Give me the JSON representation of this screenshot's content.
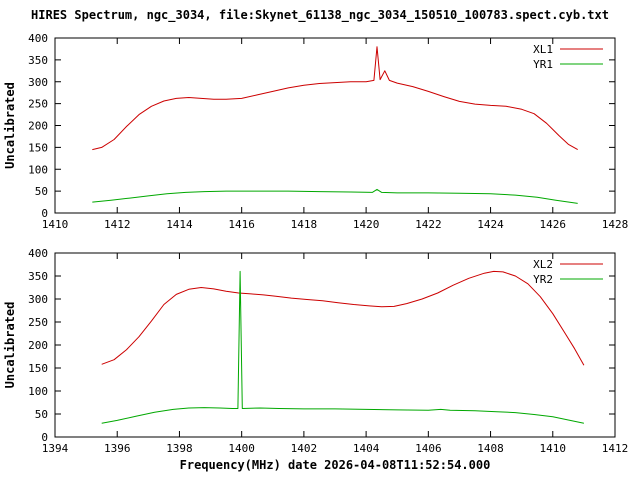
{
  "title": "HIRES Spectrum, ngc_3034, file:Skynet_61138_ngc_3034_150510_100783.spect.cyb.txt",
  "colors": {
    "series_red": "#cc0000",
    "series_green": "#00a800",
    "axis": "#000000",
    "background": "#ffffff"
  },
  "chart_data": [
    {
      "type": "line",
      "title": "",
      "xlabel": "",
      "ylabel": "Uncalibrated",
      "xlim": [
        1410,
        1428
      ],
      "ylim": [
        0,
        400
      ],
      "xtick_step": 2,
      "ytick_step": 50,
      "grid": false,
      "legend_position": "top-right",
      "series": [
        {
          "name": "XL1",
          "color": "#cc0000",
          "points": [
            [
              1411.2,
              145
            ],
            [
              1411.5,
              150
            ],
            [
              1411.9,
              168
            ],
            [
              1412.3,
              198
            ],
            [
              1412.7,
              225
            ],
            [
              1413.1,
              244
            ],
            [
              1413.5,
              256
            ],
            [
              1413.9,
              262
            ],
            [
              1414.3,
              264
            ],
            [
              1414.7,
              262
            ],
            [
              1415.1,
              260
            ],
            [
              1415.5,
              260
            ],
            [
              1416.0,
              262
            ],
            [
              1416.5,
              270
            ],
            [
              1417.0,
              278
            ],
            [
              1417.5,
              286
            ],
            [
              1418.0,
              292
            ],
            [
              1418.5,
              296
            ],
            [
              1419.0,
              298
            ],
            [
              1419.5,
              300
            ],
            [
              1420.0,
              300
            ],
            [
              1420.25,
              303
            ],
            [
              1420.35,
              380
            ],
            [
              1420.45,
              305
            ],
            [
              1420.6,
              325
            ],
            [
              1420.75,
              303
            ],
            [
              1421.0,
              297
            ],
            [
              1421.5,
              289
            ],
            [
              1422.0,
              278
            ],
            [
              1422.5,
              266
            ],
            [
              1423.0,
              255
            ],
            [
              1423.5,
              249
            ],
            [
              1424.0,
              246
            ],
            [
              1424.5,
              244
            ],
            [
              1425.0,
              237
            ],
            [
              1425.4,
              227
            ],
            [
              1425.8,
              205
            ],
            [
              1426.2,
              177
            ],
            [
              1426.5,
              157
            ],
            [
              1426.8,
              145
            ]
          ]
        },
        {
          "name": "YR1",
          "color": "#00a800",
          "points": [
            [
              1411.2,
              25
            ],
            [
              1411.8,
              29
            ],
            [
              1412.4,
              34
            ],
            [
              1413.0,
              39
            ],
            [
              1413.6,
              44
            ],
            [
              1414.2,
              47
            ],
            [
              1414.8,
              49
            ],
            [
              1415.5,
              50
            ],
            [
              1416.5,
              50
            ],
            [
              1417.5,
              50
            ],
            [
              1418.5,
              49
            ],
            [
              1419.5,
              48
            ],
            [
              1420.2,
              47
            ],
            [
              1420.35,
              54
            ],
            [
              1420.5,
              47
            ],
            [
              1421.0,
              46
            ],
            [
              1422.0,
              46
            ],
            [
              1423.0,
              45
            ],
            [
              1424.0,
              44
            ],
            [
              1424.8,
              41
            ],
            [
              1425.5,
              36
            ],
            [
              1426.1,
              29
            ],
            [
              1426.8,
              22
            ]
          ]
        }
      ]
    },
    {
      "type": "line",
      "title": "",
      "xlabel": "Frequency(MHz) date 2026-04-08T11:52:54.000",
      "ylabel": "Uncalibrated",
      "xlim": [
        1394,
        1412
      ],
      "ylim": [
        0,
        400
      ],
      "xtick_step": 2,
      "ytick_step": 50,
      "grid": false,
      "legend_position": "top-right",
      "series": [
        {
          "name": "XL2",
          "color": "#cc0000",
          "points": [
            [
              1395.5,
              158
            ],
            [
              1395.9,
              168
            ],
            [
              1396.3,
              190
            ],
            [
              1396.7,
              218
            ],
            [
              1397.1,
              252
            ],
            [
              1397.5,
              288
            ],
            [
              1397.9,
              310
            ],
            [
              1398.3,
              321
            ],
            [
              1398.7,
              325
            ],
            [
              1399.1,
              322
            ],
            [
              1399.5,
              317
            ],
            [
              1399.9,
              313
            ],
            [
              1400.3,
              311
            ],
            [
              1400.7,
              309
            ],
            [
              1401.1,
              306
            ],
            [
              1401.6,
              302
            ],
            [
              1402.1,
              299
            ],
            [
              1402.6,
              296
            ],
            [
              1403.1,
              292
            ],
            [
              1403.6,
              288
            ],
            [
              1404.1,
              285
            ],
            [
              1404.5,
              283
            ],
            [
              1404.9,
              284
            ],
            [
              1405.3,
              290
            ],
            [
              1405.8,
              300
            ],
            [
              1406.3,
              313
            ],
            [
              1406.8,
              330
            ],
            [
              1407.3,
              345
            ],
            [
              1407.8,
              356
            ],
            [
              1408.1,
              360
            ],
            [
              1408.4,
              359
            ],
            [
              1408.8,
              350
            ],
            [
              1409.2,
              333
            ],
            [
              1409.6,
              305
            ],
            [
              1410.0,
              268
            ],
            [
              1410.4,
              225
            ],
            [
              1410.7,
              192
            ],
            [
              1411.0,
              156
            ]
          ]
        },
        {
          "name": "YR2",
          "color": "#00a800",
          "points": [
            [
              1395.5,
              30
            ],
            [
              1396.0,
              36
            ],
            [
              1396.6,
              45
            ],
            [
              1397.2,
              54
            ],
            [
              1397.8,
              60
            ],
            [
              1398.3,
              63
            ],
            [
              1398.8,
              64
            ],
            [
              1399.3,
              63
            ],
            [
              1399.7,
              62
            ],
            [
              1399.88,
              62
            ],
            [
              1399.95,
              360
            ],
            [
              1400.02,
              62
            ],
            [
              1400.6,
              63
            ],
            [
              1401.2,
              62
            ],
            [
              1402.0,
              61
            ],
            [
              1403.0,
              61
            ],
            [
              1404.0,
              60
            ],
            [
              1405.0,
              59
            ],
            [
              1406.0,
              58
            ],
            [
              1406.4,
              60
            ],
            [
              1406.7,
              58
            ],
            [
              1407.5,
              57
            ],
            [
              1408.2,
              55
            ],
            [
              1408.8,
              53
            ],
            [
              1409.4,
              49
            ],
            [
              1410.0,
              44
            ],
            [
              1410.5,
              37
            ],
            [
              1411.0,
              30
            ]
          ]
        }
      ]
    }
  ]
}
